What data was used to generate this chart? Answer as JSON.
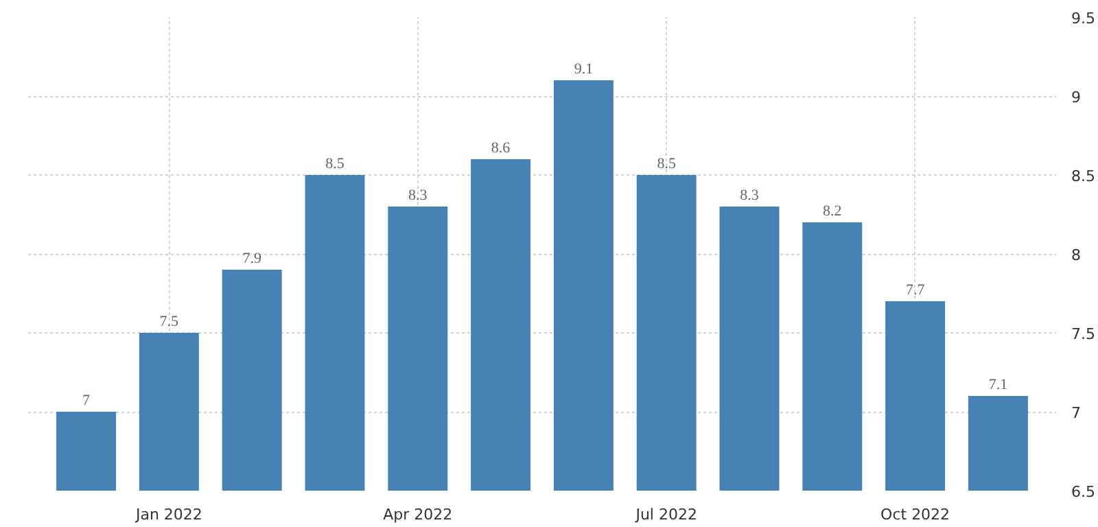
{
  "chart_data": {
    "type": "bar",
    "categories": [
      null,
      "Jan 2022",
      null,
      null,
      "Apr 2022",
      null,
      null,
      "Jul 2022",
      null,
      null,
      "Oct 2022",
      null
    ],
    "values": [
      7,
      7.5,
      7.9,
      8.5,
      8.3,
      8.6,
      9.1,
      8.5,
      8.3,
      8.2,
      7.7,
      7.1
    ],
    "color": "#4682b4",
    "ylim": [
      6.5,
      9.5
    ],
    "yticks": [
      6.5,
      7,
      7.5,
      8,
      8.5,
      9,
      9.5
    ],
    "grid": true,
    "data_labels": true
  }
}
